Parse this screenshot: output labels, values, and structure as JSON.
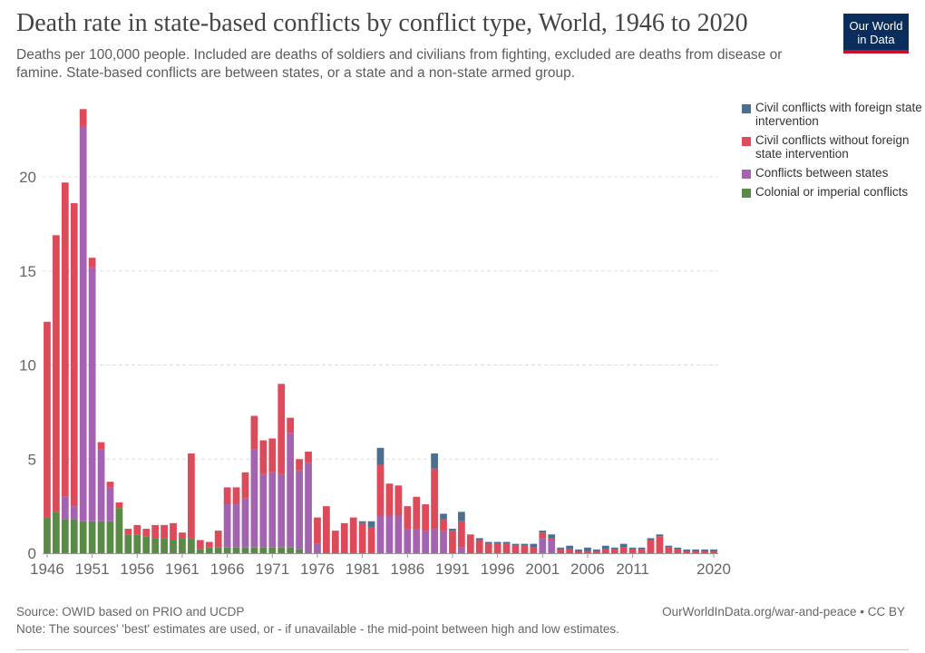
{
  "header": {
    "title": "Death rate in state-based conflicts by conflict type, World, 1946 to 2020",
    "subtitle": "Deaths per 100,000 people. Included are deaths of soldiers and civilians from fighting, excluded are deaths from disease or famine. State-based conflicts are between states, or a state and a non-state armed group.",
    "logo_line1": "Our World",
    "logo_line2": "in Data"
  },
  "footer": {
    "source": "Source: OWID based on PRIO and UCDP",
    "link": "OurWorldInData.org/war-and-peace • CC BY",
    "note": "Note: The sources' 'best' estimates are used, or - if unavailable - the mid-point between high and low estimates."
  },
  "colors": {
    "colonial": "#5b8a48",
    "interstate": "#a463b0",
    "civil": "#dd4a5a",
    "civil_foreign": "#4d6f8f"
  },
  "chart_data": {
    "type": "bar",
    "stacked": true,
    "ylim": [
      0,
      24
    ],
    "yticks": [
      0,
      5,
      10,
      15,
      20
    ],
    "grid": true,
    "legend_position": "right",
    "x_tick_labels": [
      "1946",
      "1951",
      "1956",
      "1961",
      "1966",
      "1971",
      "1976",
      "1981",
      "1986",
      "1991",
      "1996",
      "2001",
      "2006",
      "2011",
      "2020"
    ],
    "x_tick_years": [
      1946,
      1951,
      1956,
      1961,
      1966,
      1971,
      1976,
      1981,
      1986,
      1991,
      1996,
      2001,
      2006,
      2011,
      2020
    ],
    "x": [
      1946,
      1947,
      1948,
      1949,
      1950,
      1951,
      1952,
      1953,
      1954,
      1955,
      1956,
      1957,
      1958,
      1959,
      1960,
      1961,
      1962,
      1963,
      1964,
      1965,
      1966,
      1967,
      1968,
      1969,
      1970,
      1971,
      1972,
      1973,
      1974,
      1975,
      1976,
      1977,
      1978,
      1979,
      1980,
      1981,
      1982,
      1983,
      1984,
      1985,
      1986,
      1987,
      1988,
      1989,
      1990,
      1991,
      1992,
      1993,
      1994,
      1995,
      1996,
      1997,
      1998,
      1999,
      2000,
      2001,
      2002,
      2003,
      2004,
      2005,
      2006,
      2007,
      2008,
      2009,
      2010,
      2011,
      2012,
      2013,
      2014,
      2015,
      2016,
      2017,
      2018,
      2019,
      2020
    ],
    "series": [
      {
        "key": "colonial",
        "name": "Colonial or imperial conflicts",
        "values": [
          1.9,
          2.2,
          1.8,
          1.8,
          1.7,
          1.7,
          1.7,
          1.7,
          2.4,
          1.0,
          1.0,
          0.9,
          0.8,
          0.8,
          0.7,
          0.8,
          0.8,
          0.2,
          0.3,
          0.3,
          0.3,
          0.3,
          0.3,
          0.3,
          0.3,
          0.3,
          0.3,
          0.3,
          0.2,
          0,
          0,
          0,
          0,
          0,
          0,
          0,
          0,
          0,
          0,
          0,
          0,
          0,
          0,
          0,
          0,
          0,
          0,
          0,
          0,
          0,
          0,
          0,
          0,
          0,
          0,
          0,
          0,
          0,
          0,
          0,
          0,
          0,
          0,
          0,
          0,
          0,
          0,
          0,
          0,
          0,
          0,
          0,
          0,
          0,
          0
        ]
      },
      {
        "key": "interstate",
        "name": "Conflicts between states",
        "values": [
          0,
          0,
          1.2,
          0.7,
          21.0,
          13.5,
          3.8,
          1.8,
          0,
          0,
          0,
          0,
          0,
          0,
          0,
          0,
          0,
          0,
          0,
          0,
          2.3,
          2.3,
          2.6,
          5.2,
          3.9,
          4.0,
          3.9,
          6.1,
          4.2,
          4.8,
          0.5,
          0,
          0,
          0,
          0,
          0,
          0,
          2.0,
          2.0,
          2.0,
          1.3,
          1.3,
          1.2,
          1.3,
          1.2,
          0,
          0.3,
          0,
          0,
          0,
          0,
          0,
          0,
          0,
          0,
          0.8,
          0.7,
          0,
          0,
          0,
          0,
          0,
          0,
          0,
          0,
          0,
          0,
          0,
          0,
          0,
          0,
          0,
          0,
          0,
          0
        ]
      },
      {
        "key": "civil",
        "name": "Civil conflicts without foreign state intervention",
        "values": [
          10.4,
          14.7,
          16.7,
          16.1,
          0.9,
          0.5,
          0.4,
          0.3,
          0.3,
          0.3,
          0.5,
          0.4,
          0.7,
          0.7,
          0.9,
          0.3,
          4.5,
          0.5,
          0.3,
          0.9,
          0.9,
          0.9,
          1.4,
          1.8,
          1.8,
          1.8,
          4.8,
          0.8,
          0.6,
          0.6,
          1.4,
          2.5,
          1.2,
          1.6,
          1.9,
          1.6,
          1.4,
          2.7,
          1.7,
          1.6,
          1.2,
          1.7,
          1.4,
          3.2,
          0.6,
          1.2,
          1.4,
          1.0,
          0.7,
          0.5,
          0.5,
          0.5,
          0.4,
          0.4,
          0.3,
          0.3,
          0.1,
          0.2,
          0.2,
          0.1,
          0.1,
          0.1,
          0.2,
          0.2,
          0.3,
          0.2,
          0.2,
          0.7,
          0.9,
          0.3,
          0.2,
          0.1,
          0.1,
          0.1,
          0.1
        ]
      },
      {
        "key": "civil_foreign",
        "name": "Civil conflicts with foreign state intervention",
        "values": [
          0,
          0,
          0,
          0,
          0,
          0,
          0,
          0,
          0,
          0,
          0,
          0,
          0,
          0,
          0,
          0,
          0,
          0,
          0,
          0,
          0,
          0,
          0,
          0,
          0,
          0,
          0,
          0,
          0,
          0,
          0,
          0,
          0,
          0,
          0,
          0.1,
          0.3,
          0.9,
          0,
          0,
          0,
          0,
          0,
          0.8,
          0.3,
          0.1,
          0.5,
          0,
          0.1,
          0.1,
          0.1,
          0.1,
          0.1,
          0.1,
          0.2,
          0.1,
          0.2,
          0.1,
          0.2,
          0.1,
          0.2,
          0.1,
          0.2,
          0.1,
          0.2,
          0.1,
          0.1,
          0.1,
          0.1,
          0.1,
          0.1,
          0.1,
          0.1,
          0.1,
          0.1
        ]
      }
    ],
    "legend": [
      {
        "key": "civil_foreign",
        "label": "Civil conflicts with foreign state intervention"
      },
      {
        "key": "civil",
        "label": "Civil conflicts without foreign state intervention"
      },
      {
        "key": "interstate",
        "label": "Conflicts between states"
      },
      {
        "key": "colonial",
        "label": "Colonial or imperial conflicts"
      }
    ]
  }
}
